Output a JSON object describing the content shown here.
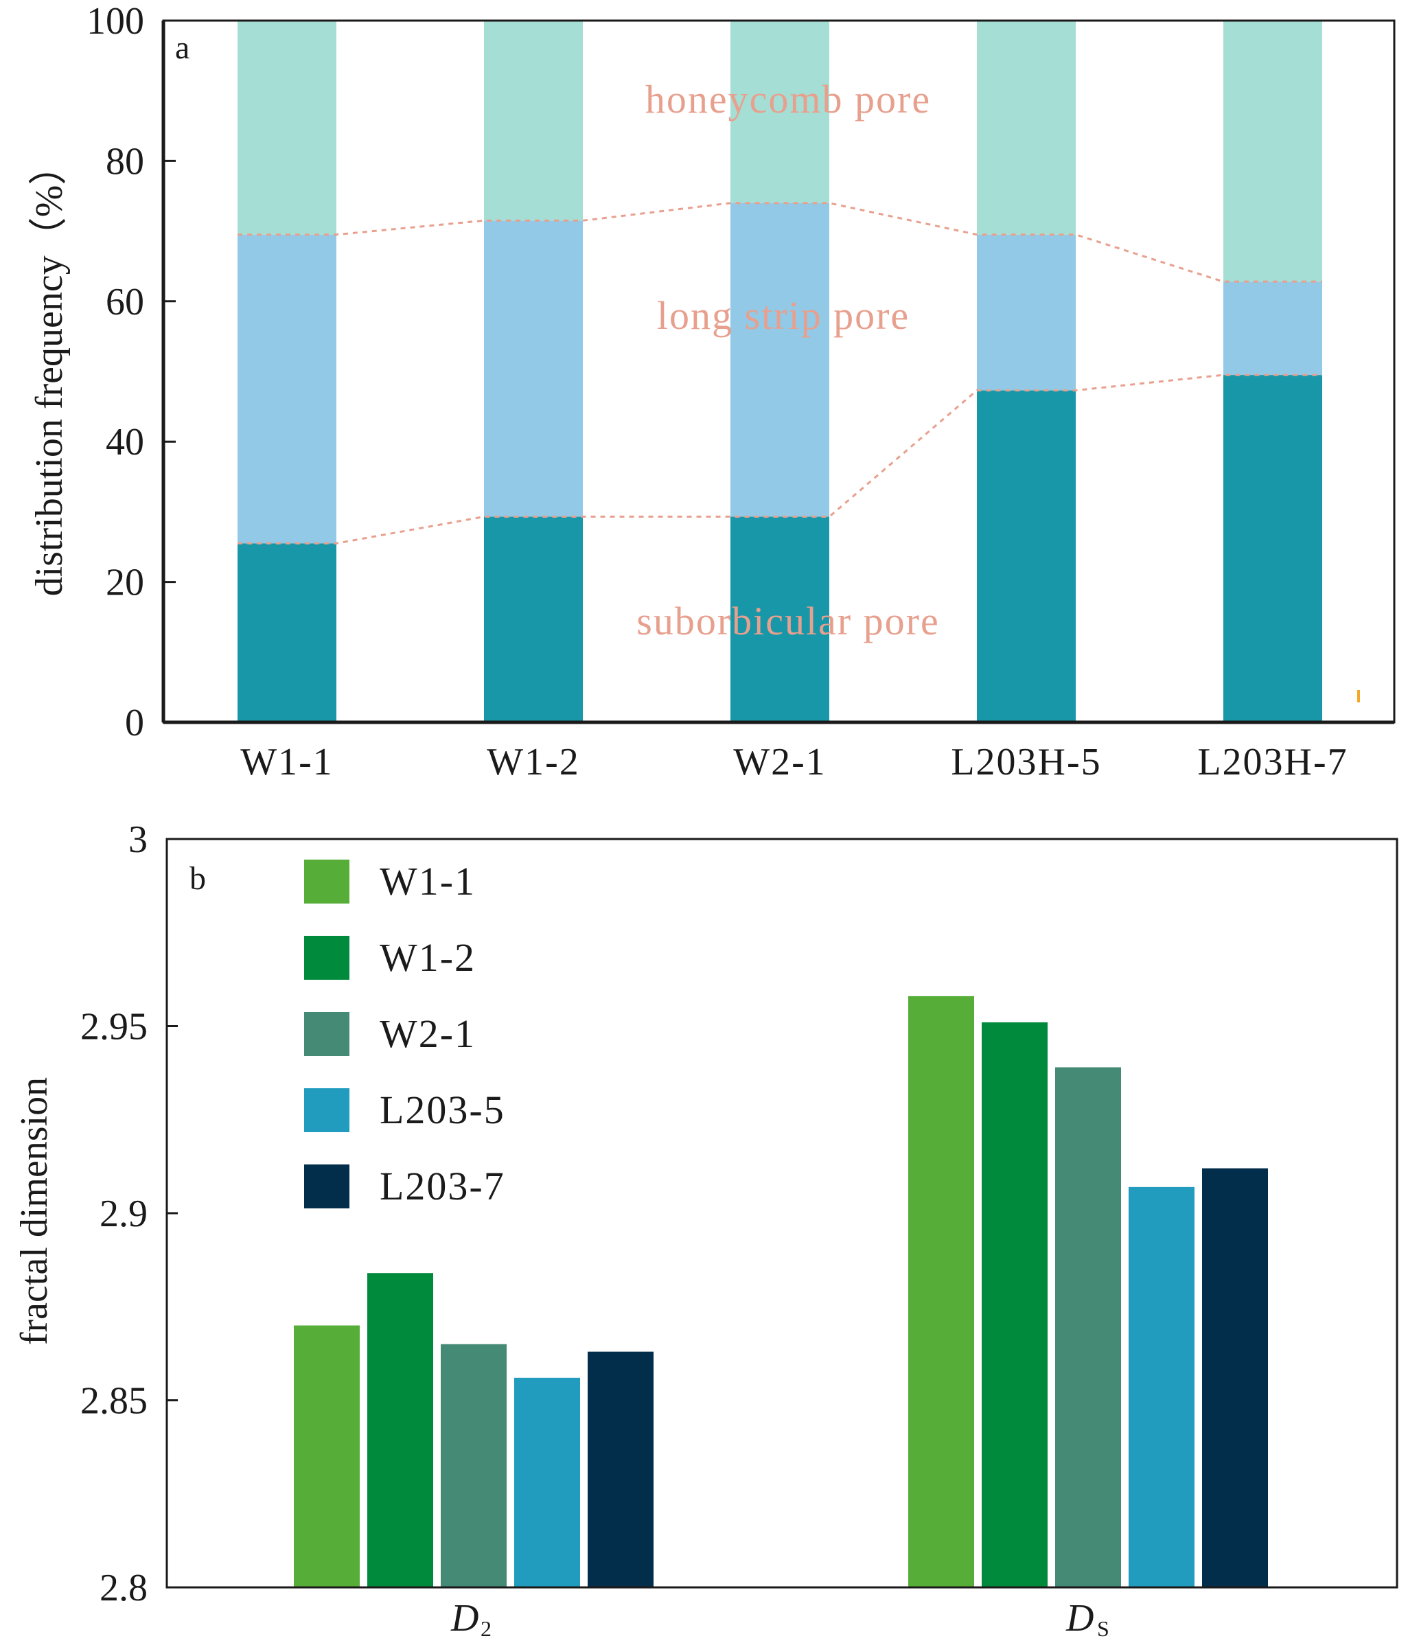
{
  "chart_data": [
    {
      "panel_label": "a",
      "type": "bar",
      "stacked": true,
      "categories": [
        "W1-1",
        "W1-2",
        "W2-1",
        "L203H-5",
        "L203H-7"
      ],
      "series": [
        {
          "name": "suborbicular pore",
          "values": [
            25.5,
            29.3,
            29.3,
            47.3,
            49.5
          ],
          "color": "#1897a8"
        },
        {
          "name": "long strip pore",
          "values": [
            44,
            42.2,
            44.7,
            22.2,
            13.3
          ],
          "color": "#92c9e6"
        },
        {
          "name": "honeycomb pore",
          "values": [
            30.5,
            28.5,
            26,
            30.5,
            37.2
          ],
          "color": "#a5ded4"
        }
      ],
      "ylabel": "distribution frequency（%）",
      "ylim": [
        0,
        100
      ],
      "yticks": [
        0,
        20,
        40,
        60,
        80,
        100
      ],
      "connector_color": "#e8a08e"
    },
    {
      "panel_label": "b",
      "type": "bar",
      "categories": [
        "D2",
        "Ds"
      ],
      "category_labels": [
        {
          "main": "D",
          "sub": "2"
        },
        {
          "main": "D",
          "sub": "S"
        }
      ],
      "series": [
        {
          "name": "W1-1",
          "values": [
            2.87,
            2.958
          ],
          "color": "#56ae38"
        },
        {
          "name": "W1-2",
          "values": [
            2.884,
            2.951
          ],
          "color": "#008a3c"
        },
        {
          "name": "W2-1",
          "values": [
            2.865,
            2.939
          ],
          "color": "#458a75"
        },
        {
          "name": "L203-5",
          "values": [
            2.856,
            2.907
          ],
          "color": "#219cbf"
        },
        {
          "name": "L203-7",
          "values": [
            2.863,
            2.912
          ],
          "color": "#022e4b"
        }
      ],
      "ylabel": "fractal dimension",
      "ylim": [
        2.8,
        3.0
      ],
      "yticks": [
        "2.8",
        "2.85",
        "2.9",
        "2.95",
        "3"
      ],
      "legend": "top-left"
    }
  ]
}
